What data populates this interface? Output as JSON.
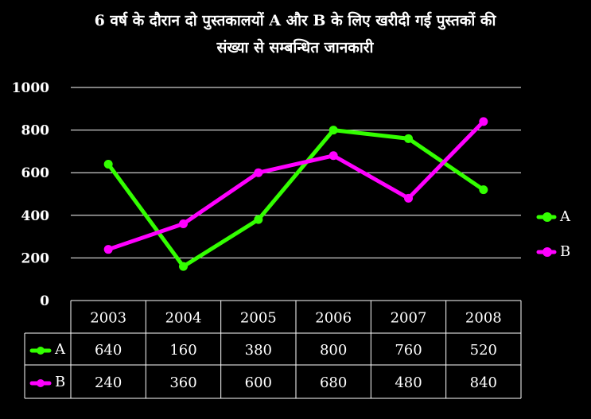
{
  "chart_data": {
    "type": "line",
    "title_lines": [
      "6 वर्ष के दौरान दो पुस्तकालयों A और B के लिए खरीदी गई पुस्तकों की",
      "संख्या से सम्बन्धित जानकारी"
    ],
    "x": [
      "2003",
      "2004",
      "2005",
      "2006",
      "2007",
      "2008"
    ],
    "series": [
      {
        "name": "A",
        "values": [
          640,
          160,
          380,
          800,
          760,
          520
        ],
        "color": "#33ff00"
      },
      {
        "name": "B",
        "values": [
          240,
          360,
          600,
          680,
          480,
          840
        ],
        "color": "#ff00ff"
      }
    ],
    "ylim": [
      0,
      1000
    ],
    "yticks": [
      0,
      200,
      400,
      600,
      800,
      1000
    ],
    "grid": true,
    "legend": "right",
    "data_table": true,
    "background": "#000000"
  }
}
